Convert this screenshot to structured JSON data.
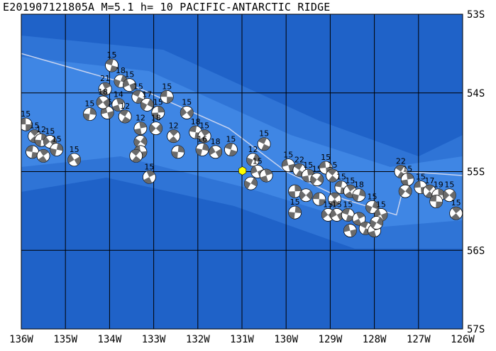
{
  "title": "E201907121805A M=5.1 h= 10 PACIFIC-ANTARCTIC RIDGE",
  "map": {
    "lon_range": [
      -136,
      -126
    ],
    "lat_range": [
      -57,
      -53
    ],
    "lon_tick_labels": [
      "136W",
      "135W",
      "134W",
      "133W",
      "132W",
      "131W",
      "130W",
      "129W",
      "128W",
      "127W",
      "126W"
    ],
    "lat_tick_labels": [
      "53S",
      "54S",
      "55S",
      "56S",
      "57S"
    ],
    "colors": {
      "ocean_deep": "#1f62c8",
      "ocean_mid": "#2f74d6",
      "ocean_shallow": "#3f86e4",
      "grid": "#000000",
      "ridge_line": "#c8d4f0",
      "event_marker": "#ffff00",
      "beachball_dark": "#6a6a6a"
    },
    "event": {
      "lon": -130.99,
      "lat": -54.99
    },
    "mechanisms": [
      {
        "lon": -135.9,
        "lat": -54.4,
        "depth": "15"
      },
      {
        "lon": -135.7,
        "lat": -54.55,
        "depth": "15"
      },
      {
        "lon": -135.55,
        "lat": -54.6,
        "depth": "12"
      },
      {
        "lon": -135.35,
        "lat": -54.62,
        "depth": "15"
      },
      {
        "lon": -135.75,
        "lat": -54.75,
        "depth": ""
      },
      {
        "lon": -135.5,
        "lat": -54.8,
        "depth": ""
      },
      {
        "lon": -135.2,
        "lat": -54.72,
        "depth": "15"
      },
      {
        "lon": -134.8,
        "lat": -54.85,
        "depth": "15"
      },
      {
        "lon": -133.95,
        "lat": -53.65,
        "depth": "15"
      },
      {
        "lon": -134.1,
        "lat": -53.95,
        "depth": "21"
      },
      {
        "lon": -133.75,
        "lat": -53.85,
        "depth": "18"
      },
      {
        "lon": -133.55,
        "lat": -53.9,
        "depth": "15"
      },
      {
        "lon": -133.35,
        "lat": -54.05,
        "depth": "15"
      },
      {
        "lon": -133.8,
        "lat": -54.15,
        "depth": "14"
      },
      {
        "lon": -133.15,
        "lat": -54.15,
        "depth": "17"
      },
      {
        "lon": -134.05,
        "lat": -54.25,
        "depth": "15"
      },
      {
        "lon": -133.65,
        "lat": -54.3,
        "depth": "12"
      },
      {
        "lon": -133.3,
        "lat": -54.45,
        "depth": "12"
      },
      {
        "lon": -133.3,
        "lat": -54.62,
        "depth": ""
      },
      {
        "lon": -133.3,
        "lat": -54.75,
        "depth": ""
      },
      {
        "lon": -133.4,
        "lat": -54.8,
        "depth": ""
      },
      {
        "lon": -132.9,
        "lat": -54.25,
        "depth": "15"
      },
      {
        "lon": -132.95,
        "lat": -54.45,
        "depth": "18"
      },
      {
        "lon": -132.7,
        "lat": -54.05,
        "depth": "15"
      },
      {
        "lon": -132.55,
        "lat": -54.55,
        "depth": "12"
      },
      {
        "lon": -132.45,
        "lat": -54.75,
        "depth": ""
      },
      {
        "lon": -132.25,
        "lat": -54.25,
        "depth": "15"
      },
      {
        "lon": -132.05,
        "lat": -54.5,
        "depth": "18"
      },
      {
        "lon": -131.85,
        "lat": -54.55,
        "depth": "15"
      },
      {
        "lon": -131.9,
        "lat": -54.72,
        "depth": "16"
      },
      {
        "lon": -131.6,
        "lat": -54.75,
        "depth": "18"
      },
      {
        "lon": -131.25,
        "lat": -54.72,
        "depth": "15"
      },
      {
        "lon": -133.1,
        "lat": -55.07,
        "depth": "15"
      },
      {
        "lon": -130.75,
        "lat": -54.85,
        "depth": "12"
      },
      {
        "lon": -130.65,
        "lat": -55.0,
        "depth": "15"
      },
      {
        "lon": -130.5,
        "lat": -54.65,
        "depth": "15"
      },
      {
        "lon": -130.45,
        "lat": -55.05,
        "depth": ""
      },
      {
        "lon": -130.8,
        "lat": -55.15,
        "depth": ""
      },
      {
        "lon": -129.95,
        "lat": -54.92,
        "depth": "15"
      },
      {
        "lon": -129.7,
        "lat": -54.98,
        "depth": "22"
      },
      {
        "lon": -129.5,
        "lat": -55.05,
        "depth": "15"
      },
      {
        "lon": -129.3,
        "lat": -55.1,
        "depth": "15"
      },
      {
        "lon": -129.1,
        "lat": -54.95,
        "depth": "15"
      },
      {
        "lon": -128.95,
        "lat": -55.05,
        "depth": "15"
      },
      {
        "lon": -129.8,
        "lat": -55.25,
        "depth": ""
      },
      {
        "lon": -129.55,
        "lat": -55.3,
        "depth": ""
      },
      {
        "lon": -129.25,
        "lat": -55.35,
        "depth": ""
      },
      {
        "lon": -128.9,
        "lat": -55.35,
        "depth": ""
      },
      {
        "lon": -129.8,
        "lat": -55.52,
        "depth": "15"
      },
      {
        "lon": -129.05,
        "lat": -55.55,
        "depth": "15"
      },
      {
        "lon": -128.75,
        "lat": -55.2,
        "depth": "15"
      },
      {
        "lon": -128.55,
        "lat": -55.25,
        "depth": "15"
      },
      {
        "lon": -128.35,
        "lat": -55.3,
        "depth": "18"
      },
      {
        "lon": -128.85,
        "lat": -55.55,
        "depth": "15"
      },
      {
        "lon": -128.6,
        "lat": -55.55,
        "depth": "15"
      },
      {
        "lon": -128.35,
        "lat": -55.6,
        "depth": ""
      },
      {
        "lon": -128.05,
        "lat": -55.45,
        "depth": "15"
      },
      {
        "lon": -127.85,
        "lat": -55.55,
        "depth": "15"
      },
      {
        "lon": -128.2,
        "lat": -55.72,
        "depth": ""
      },
      {
        "lon": -128.0,
        "lat": -55.75,
        "depth": ""
      },
      {
        "lon": -127.95,
        "lat": -55.65,
        "depth": ""
      },
      {
        "lon": -128.55,
        "lat": -55.75,
        "depth": ""
      },
      {
        "lon": -127.4,
        "lat": -55.0,
        "depth": "22"
      },
      {
        "lon": -127.25,
        "lat": -55.1,
        "depth": "15"
      },
      {
        "lon": -127.3,
        "lat": -55.25,
        "depth": ""
      },
      {
        "lon": -126.95,
        "lat": -55.2,
        "depth": "15"
      },
      {
        "lon": -126.75,
        "lat": -55.25,
        "depth": "17"
      },
      {
        "lon": -126.55,
        "lat": -55.3,
        "depth": "19"
      },
      {
        "lon": -126.3,
        "lat": -55.3,
        "depth": "15"
      },
      {
        "lon": -126.6,
        "lat": -55.38,
        "depth": ""
      },
      {
        "lon": -126.15,
        "lat": -55.53,
        "depth": "15"
      },
      {
        "lon": -134.45,
        "lat": -54.27,
        "depth": "15"
      },
      {
        "lon": -134.15,
        "lat": -54.12,
        "depth": "18"
      }
    ]
  }
}
